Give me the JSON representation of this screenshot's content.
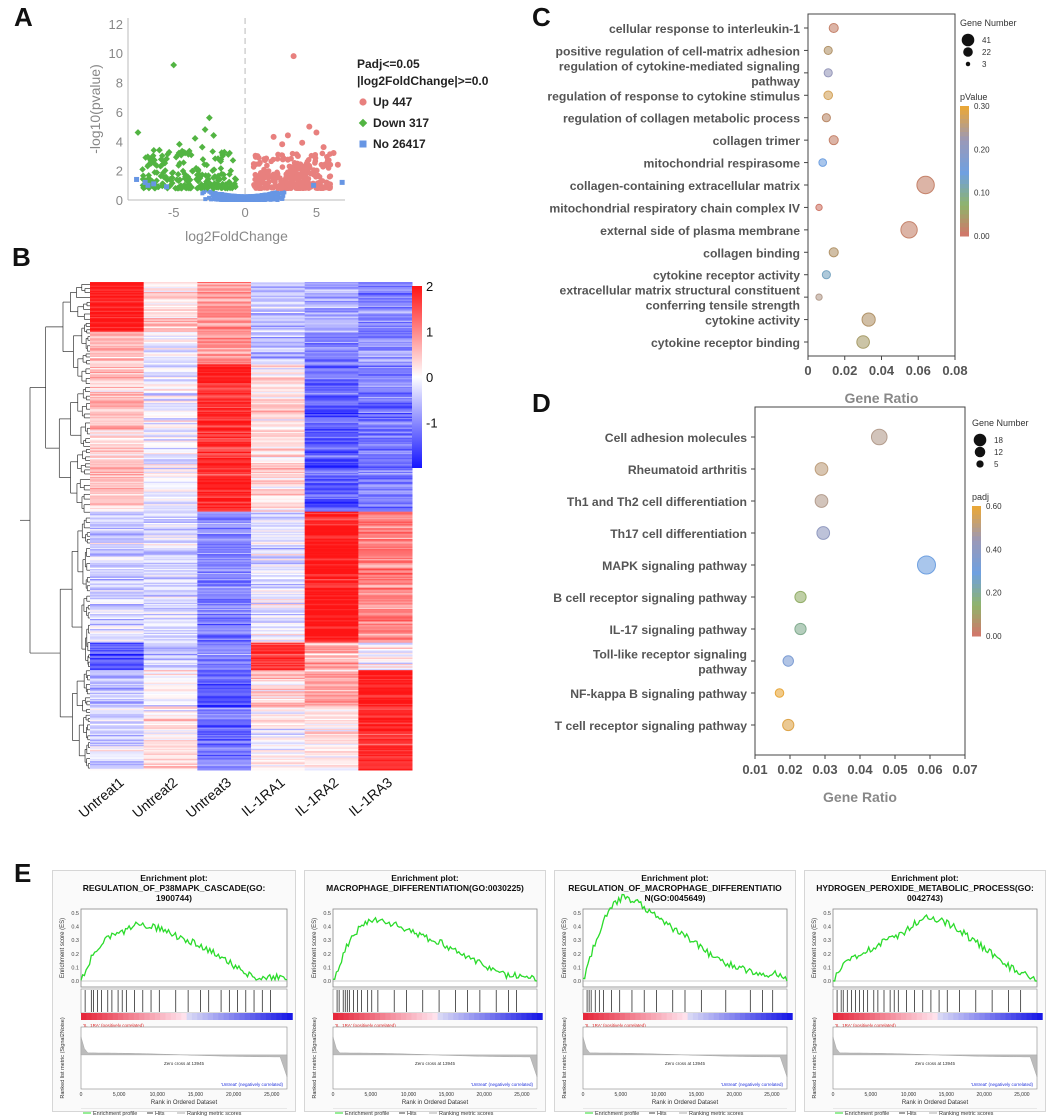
{
  "panels": {
    "a": "A",
    "b": "B",
    "c": "C",
    "d": "D",
    "e": "E"
  },
  "chart_data": [
    {
      "id": "A",
      "type": "scatter",
      "subtype": "volcano",
      "xlabel": "log2FoldChange",
      "ylabel": "-log10(pvalue)",
      "xlim": [
        -8.2,
        7
      ],
      "ylim": [
        0,
        12.4
      ],
      "xticks": [
        -5,
        0,
        5
      ],
      "yticks": [
        0,
        2,
        4,
        6,
        8,
        10,
        12
      ],
      "legend_title": [
        "Padj<=0.05",
        "|log2FoldChange|>=0.0"
      ],
      "series": [
        {
          "name": "Up 447",
          "color": "#e8807e",
          "marker": "circle",
          "count": 447
        },
        {
          "name": "Down 317",
          "color": "#52b442",
          "marker": "diamond",
          "count": 317
        },
        {
          "name": "No 26417",
          "color": "#6796e4",
          "marker": "square",
          "count": 26417
        }
      ],
      "highlight_points": {
        "up": [
          [
            3.4,
            9.8
          ],
          [
            4.5,
            5.0
          ],
          [
            2.0,
            4.3
          ],
          [
            3.0,
            4.4
          ],
          [
            5.5,
            3.6
          ],
          [
            6.2,
            3.2
          ],
          [
            4.0,
            3.9
          ],
          [
            5.0,
            4.6
          ],
          [
            2.6,
            3.8
          ],
          [
            3.7,
            3.0
          ],
          [
            5.8,
            2.7
          ],
          [
            6.5,
            2.4
          ]
        ],
        "down": [
          [
            -5.0,
            9.2
          ],
          [
            -7.5,
            4.6
          ],
          [
            -2.5,
            5.6
          ],
          [
            -3.5,
            4.2
          ],
          [
            -2.8,
            4.8
          ],
          [
            -4.6,
            3.8
          ],
          [
            -6.0,
            3.4
          ],
          [
            -4.2,
            3.2
          ],
          [
            -3.0,
            3.6
          ],
          [
            -2.2,
            4.4
          ],
          [
            -5.5,
            2.8
          ],
          [
            -6.6,
            2.5
          ]
        ],
        "no": [
          [
            -7.0,
            1.2
          ],
          [
            -6.4,
            1.1
          ],
          [
            -6.8,
            1.0
          ],
          [
            -7.6,
            1.4
          ],
          [
            6.8,
            1.2
          ],
          [
            -5.5,
            0.9
          ],
          [
            4.8,
            1.0
          ]
        ]
      }
    },
    {
      "id": "B",
      "type": "heatmap",
      "columns": [
        "Untreat1",
        "Untreat2",
        "Untreat3",
        "IL-1RA1",
        "IL-1RA2",
        "IL-1RA3"
      ],
      "colorbar": {
        "min": -2,
        "max": 2,
        "ticks": [
          2,
          1,
          0,
          -1
        ],
        "low_color": "#1414ff",
        "mid_color": "#ffffff",
        "high_color": "#ff1414"
      },
      "blocks": [
        {
          "rows": 40,
          "values": [
            2.0,
            0.3,
            0.9,
            -0.5,
            -0.7,
            -1.0
          ]
        },
        {
          "rows": 26,
          "values": [
            0.6,
            -0.1,
            1.0,
            -0.6,
            -1.1,
            -0.9
          ]
        },
        {
          "rows": 118,
          "values": [
            0.5,
            -0.1,
            1.8,
            0.3,
            -1.4,
            -1.1
          ]
        },
        {
          "rows": 105,
          "values": [
            -0.4,
            -0.3,
            -1.0,
            -0.2,
            2.0,
            1.0
          ]
        },
        {
          "rows": 22,
          "values": [
            -1.4,
            -0.5,
            -0.9,
            1.8,
            0.6,
            -0.1
          ]
        },
        {
          "rows": 30,
          "values": [
            -0.6,
            0.0,
            -1.4,
            0.4,
            0.8,
            1.9
          ]
        },
        {
          "rows": 50,
          "values": [
            -0.3,
            0.2,
            -1.2,
            0.0,
            0.3,
            1.8
          ]
        }
      ]
    },
    {
      "id": "C",
      "type": "scatter",
      "subtype": "bubble",
      "xlabel": "Gene Ratio",
      "xlim": [
        0,
        0.08
      ],
      "xticks": [
        0,
        0.02,
        0.04,
        0.06,
        0.08
      ],
      "xticklabels": [
        "0",
        "0.02",
        "0.04",
        "0.06",
        "0.08"
      ],
      "terms": [
        {
          "label": "cellular response to interleukin-1",
          "x": 0.014,
          "genes": 8,
          "p": 0.02
        },
        {
          "label": "positive regulation of cell-matrix adhesion",
          "x": 0.011,
          "genes": 6,
          "p": 0.04
        },
        {
          "label": "regulation of cytokine-mediated signaling pathway",
          "x": 0.011,
          "genes": 6,
          "p": 0.22
        },
        {
          "label": "regulation of response to cytokine stimulus",
          "x": 0.011,
          "genes": 7,
          "p": 0.28
        },
        {
          "label": "regulation of collagen metabolic process",
          "x": 0.01,
          "genes": 6,
          "p": 0.03
        },
        {
          "label": "collagen trimer",
          "x": 0.014,
          "genes": 8,
          "p": 0.02
        },
        {
          "label": "mitochondrial respirasome",
          "x": 0.008,
          "genes": 5,
          "p": 0.15
        },
        {
          "label": "collagen-containing extracellular matrix",
          "x": 0.064,
          "genes": 38,
          "p": 0.02
        },
        {
          "label": "mitochondrial respiratory chain complex IV",
          "x": 0.006,
          "genes": 3,
          "p": 0.01
        },
        {
          "label": "external side of plasma membrane",
          "x": 0.055,
          "genes": 33,
          "p": 0.02
        },
        {
          "label": "collagen binding",
          "x": 0.014,
          "genes": 8,
          "p": 0.04
        },
        {
          "label": "cytokine receptor activity",
          "x": 0.01,
          "genes": 6,
          "p": 0.13
        },
        {
          "label": "extracellular matrix structural constituent conferring tensile strength",
          "x": 0.006,
          "genes": 3,
          "p": 0.25
        },
        {
          "label": "cytokine activity",
          "x": 0.033,
          "genes": 20,
          "p": 0.04
        },
        {
          "label": "cytokine receptor binding",
          "x": 0.03,
          "genes": 18,
          "p": 0.05
        }
      ],
      "size_legend": {
        "title": "Gene Number",
        "values": [
          41,
          22,
          3
        ]
      },
      "color_legend": {
        "title": "pValue",
        "ticks": [
          "0.30",
          "0.20",
          "0.10",
          "0.00"
        ],
        "range": [
          0,
          0.3
        ]
      }
    },
    {
      "id": "D",
      "type": "scatter",
      "subtype": "bubble",
      "xlabel": "Gene Ratio",
      "xlim": [
        0.01,
        0.07
      ],
      "xticks": [
        0.01,
        0.02,
        0.03,
        0.04,
        0.05,
        0.06,
        0.07
      ],
      "xticklabels": [
        "0.01",
        "0.02",
        "0.03",
        "0.04",
        "0.05",
        "0.06",
        "0.07"
      ],
      "terms": [
        {
          "label": "Cell adhesion molecules",
          "x": 0.0455,
          "genes": 13,
          "padj": 0.5
        },
        {
          "label": "Rheumatoid arthritis",
          "x": 0.029,
          "genes": 8,
          "padj": 0.52
        },
        {
          "label": "Th1 and Th2 cell differentiation",
          "x": 0.029,
          "genes": 8,
          "padj": 0.5
        },
        {
          "label": "Th17 cell differentiation",
          "x": 0.0295,
          "genes": 8,
          "padj": 0.42
        },
        {
          "label": "MAPK signaling pathway",
          "x": 0.059,
          "genes": 18,
          "padj": 0.3
        },
        {
          "label": "B cell receptor signaling pathway",
          "x": 0.023,
          "genes": 6,
          "padj": 0.14
        },
        {
          "label": "IL-17 signaling pathway",
          "x": 0.023,
          "genes": 6,
          "padj": 0.2
        },
        {
          "label": "Toll-like receptor signaling pathway",
          "x": 0.0195,
          "genes": 5,
          "padj": 0.35
        },
        {
          "label": "NF-kappa B signaling pathway",
          "x": 0.017,
          "genes": 3,
          "padj": 0.62
        },
        {
          "label": "T cell receptor signaling pathway",
          "x": 0.0195,
          "genes": 6,
          "padj": 0.58
        }
      ],
      "size_legend": {
        "title": "Gene Number",
        "values": [
          18,
          12,
          5
        ]
      },
      "color_legend": {
        "title": "padj",
        "ticks": [
          "0.60",
          "0.40",
          "0.20",
          "0.00"
        ],
        "range": [
          0,
          0.6
        ]
      }
    },
    {
      "id": "E",
      "type": "line",
      "subtype": "gsea",
      "plots": [
        {
          "title": [
            "Enrichment plot:",
            "REGULATION_OF_P38MAPK_CASCADE(GO:",
            "1900744)"
          ],
          "es": [
            0,
            0.22,
            0.32,
            0.36,
            0.42,
            0.4,
            0.38,
            0.33,
            0.29,
            0.24,
            0.2,
            0.12,
            0.06,
            0.02,
            0.03,
            0.01
          ],
          "hits": [
            0.02,
            0.05,
            0.06,
            0.08,
            0.1,
            0.13,
            0.15,
            0.18,
            0.2,
            0.22,
            0.26,
            0.3,
            0.34,
            0.38,
            0.46,
            0.52,
            0.58,
            0.62,
            0.68,
            0.72,
            0.76,
            0.8,
            0.84,
            0.88,
            0.92
          ]
        },
        {
          "title": [
            "Enrichment plot:",
            "MACROPHAGE_DIFFERENTIATION(GO:0030225)"
          ],
          "es": [
            0,
            0.25,
            0.4,
            0.46,
            0.43,
            0.4,
            0.35,
            0.31,
            0.28,
            0.22,
            0.18,
            0.12,
            0.08,
            0.03,
            0.05,
            0.0
          ],
          "hits": [
            0.02,
            0.03,
            0.05,
            0.06,
            0.07,
            0.08,
            0.1,
            0.12,
            0.14,
            0.17,
            0.19,
            0.22,
            0.3,
            0.36,
            0.44,
            0.52,
            0.6,
            0.66,
            0.72,
            0.8,
            0.86,
            0.9
          ]
        },
        {
          "title": [
            "Enrichment plot:",
            "REGULATION_OF_MACROPHAGE_DIFFERENTIATIO",
            "N(GO:0045649)"
          ],
          "es": [
            0,
            0.32,
            0.55,
            0.62,
            0.58,
            0.5,
            0.43,
            0.36,
            0.3,
            0.22,
            0.15,
            0.12,
            0.08,
            0.04,
            0.06,
            0.0
          ],
          "hits": [
            0.02,
            0.03,
            0.04,
            0.06,
            0.08,
            0.1,
            0.14,
            0.18,
            0.24,
            0.3,
            0.36,
            0.44,
            0.5,
            0.58,
            0.7,
            0.82,
            0.88,
            0.93
          ]
        },
        {
          "title": [
            "Enrichment plot:",
            "HYDROGEN_PEROXIDE_METABOLIC_PROCESS(GO:",
            "0042743)"
          ],
          "es": [
            0,
            0.15,
            0.2,
            0.25,
            0.3,
            0.34,
            0.42,
            0.48,
            0.44,
            0.4,
            0.32,
            0.25,
            0.18,
            0.1,
            0.05,
            0.0
          ],
          "hits": [
            0.02,
            0.04,
            0.05,
            0.07,
            0.09,
            0.11,
            0.13,
            0.15,
            0.17,
            0.2,
            0.22,
            0.25,
            0.28,
            0.3,
            0.32,
            0.36,
            0.4,
            0.44,
            0.48,
            0.52,
            0.56,
            0.62,
            0.7,
            0.78,
            0.86,
            0.92
          ]
        }
      ],
      "es_axis_label": "Enrichment score (ES)",
      "metric_axis_label": "Ranked list metric (Signal2Noise)",
      "rank_axis_label": "Rank in Ordered Dataset",
      "rank_ticks": [
        "0",
        "5,000",
        "10,000",
        "15,000",
        "20,000",
        "25,000"
      ],
      "pos_label": "'IL_1RA' (positively correlated)",
      "neg_label": "'Untreat' (negatively correlated)",
      "zero_cross": "Zero cross at 13945",
      "legend": [
        "Enrichment profile",
        "Hits",
        "Ranking metric scores"
      ]
    }
  ]
}
